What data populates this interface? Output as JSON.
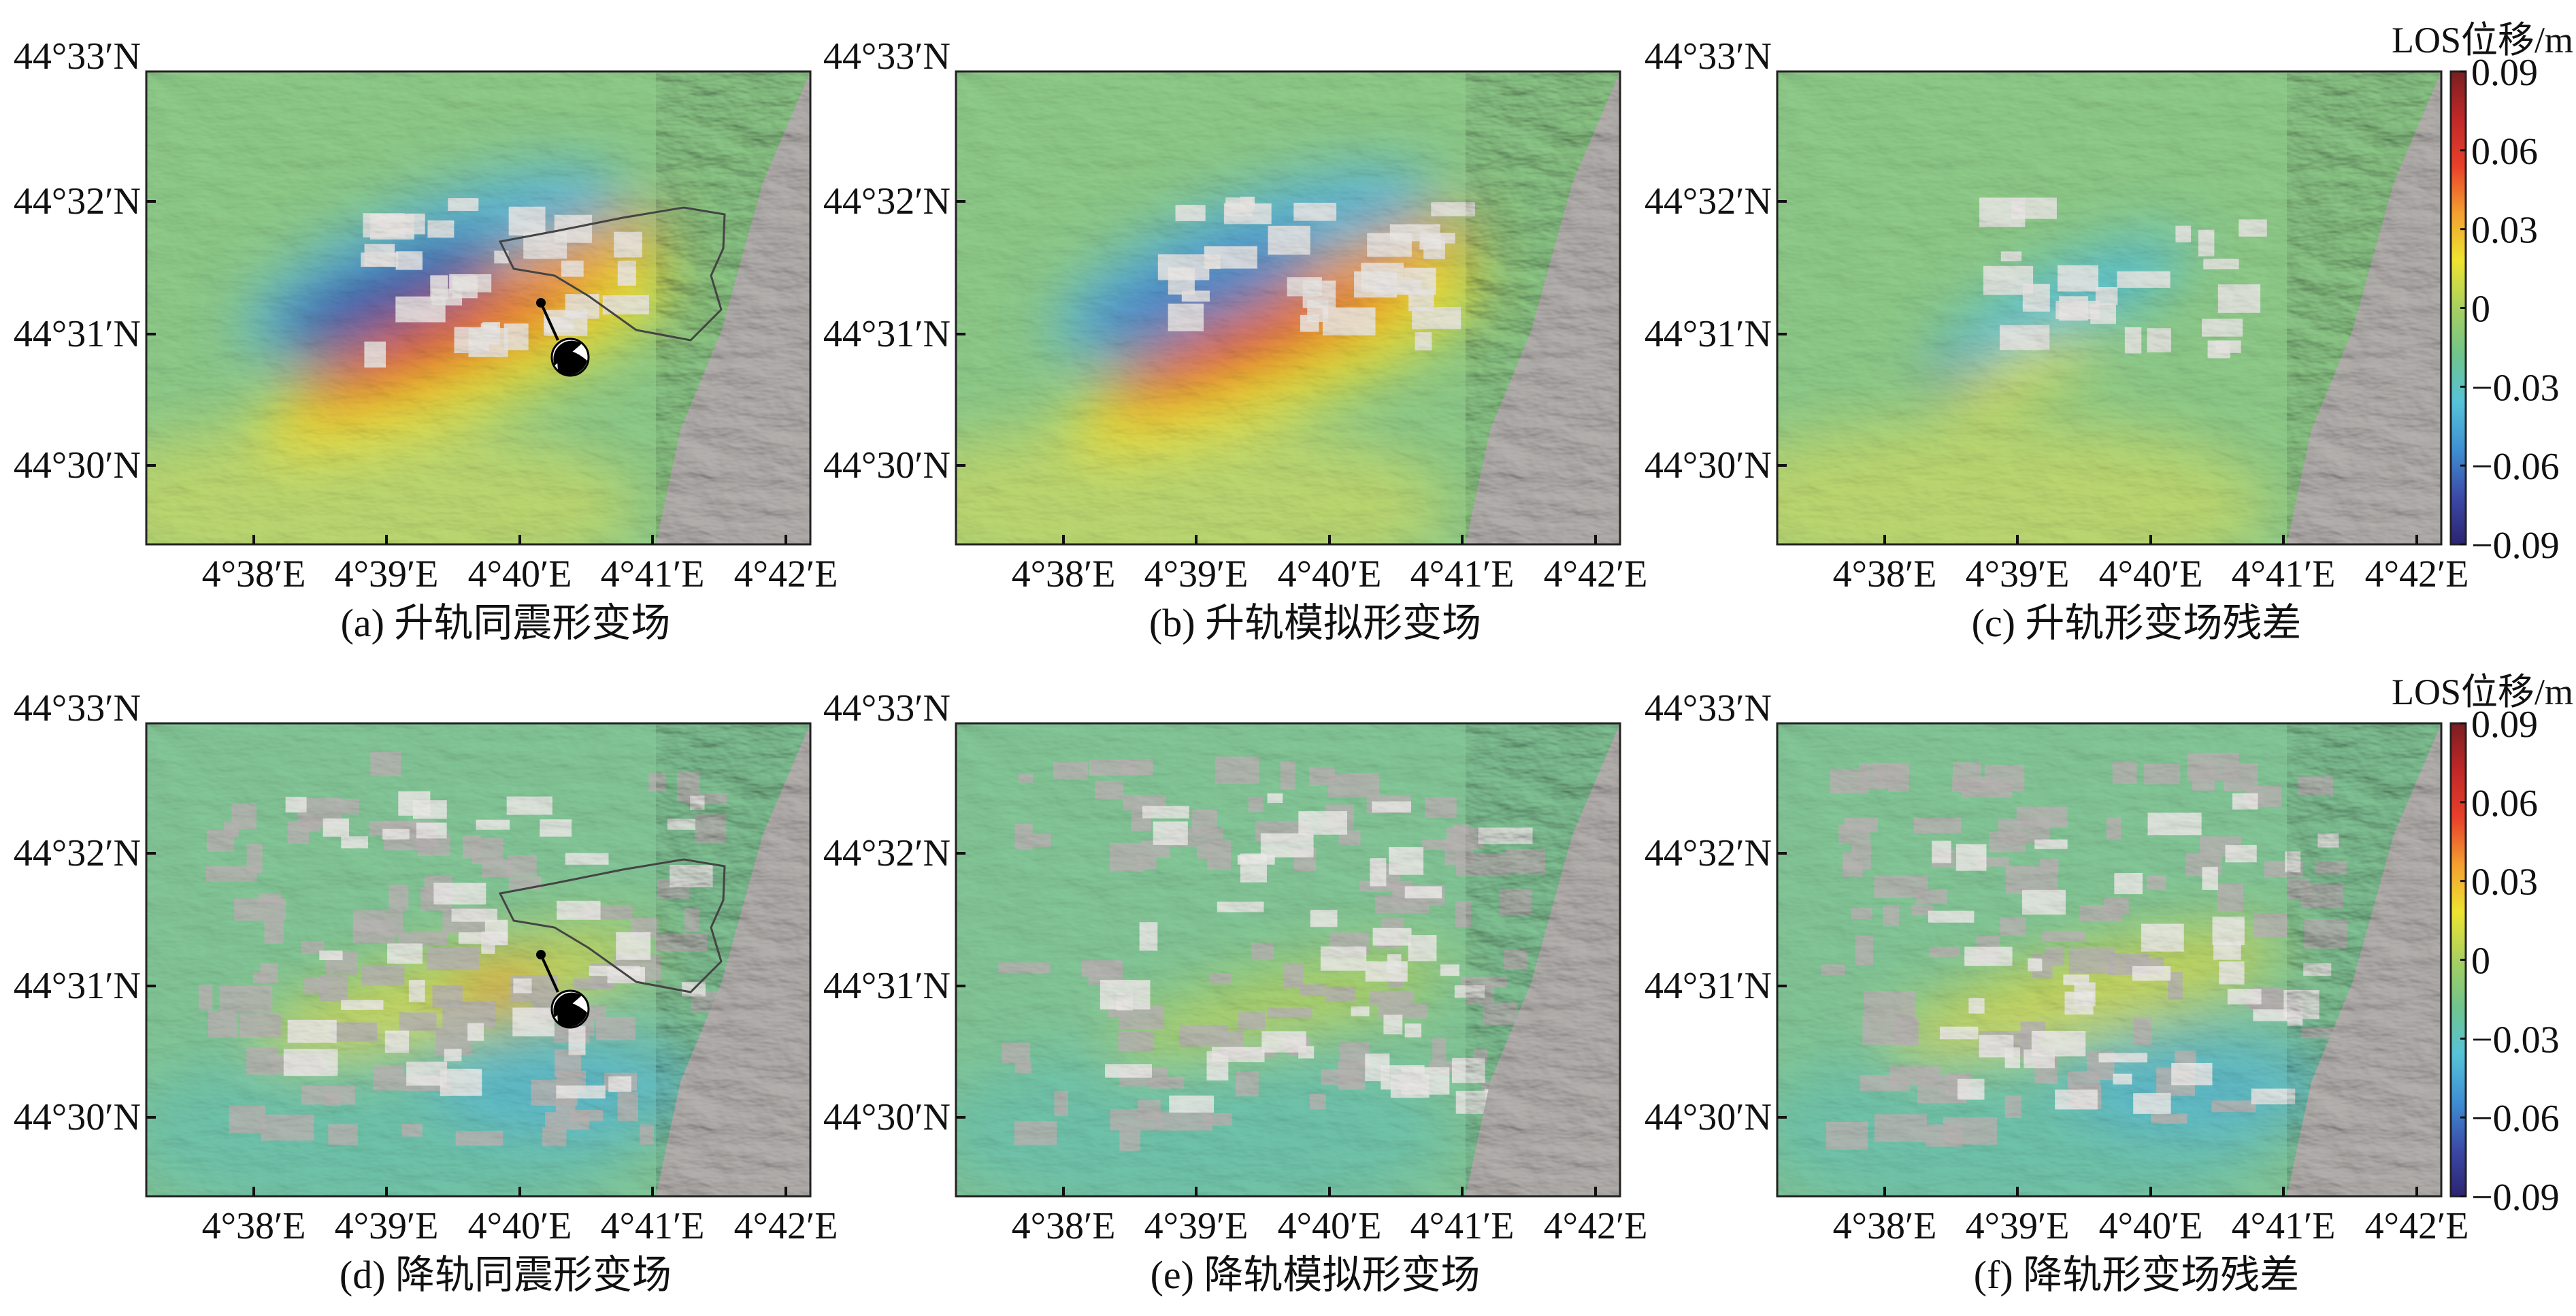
{
  "figure": {
    "colorbar": {
      "title": "LOS位移/m",
      "ticks": [
        "0.09",
        "0.06",
        "0.03",
        "0",
        "−0.03",
        "−0.06",
        "−0.09"
      ],
      "range": [
        -0.09,
        0.09
      ],
      "colors": [
        "#2c2470",
        "#3b4aa8",
        "#3f8fd2",
        "#56c3d8",
        "#70c48c",
        "#a8d060",
        "#eee430",
        "#f4a030",
        "#e8402a",
        "#c02828",
        "#7a1e22"
      ]
    },
    "lat_ticks": [
      "44°33′N",
      "44°32′N",
      "44°31′N",
      "44°30′N"
    ],
    "lon_ticks": [
      "4°38′E",
      "4°39′E",
      "4°40′E",
      "4°41′E",
      "4°42′E"
    ],
    "panels": [
      {
        "id": "a",
        "caption": "(a) 升轨同震形变场",
        "pattern": "asc-observed",
        "fault_outline": true,
        "focal_mechanism": true
      },
      {
        "id": "b",
        "caption": "(b) 升轨模拟形变场",
        "pattern": "asc-model",
        "fault_outline": false,
        "focal_mechanism": false
      },
      {
        "id": "c",
        "caption": "(c) 升轨形变场残差",
        "pattern": "asc-residual",
        "fault_outline": false,
        "focal_mechanism": false
      },
      {
        "id": "d",
        "caption": "(d) 降轨同震形变场",
        "pattern": "desc-observed",
        "fault_outline": true,
        "focal_mechanism": true
      },
      {
        "id": "e",
        "caption": "(e) 降轨模拟形变场",
        "pattern": "desc-model",
        "fault_outline": false,
        "focal_mechanism": false
      },
      {
        "id": "f",
        "caption": "(f) 降轨形变场残差",
        "pattern": "desc-residual",
        "fault_outline": false,
        "focal_mechanism": false
      }
    ]
  }
}
